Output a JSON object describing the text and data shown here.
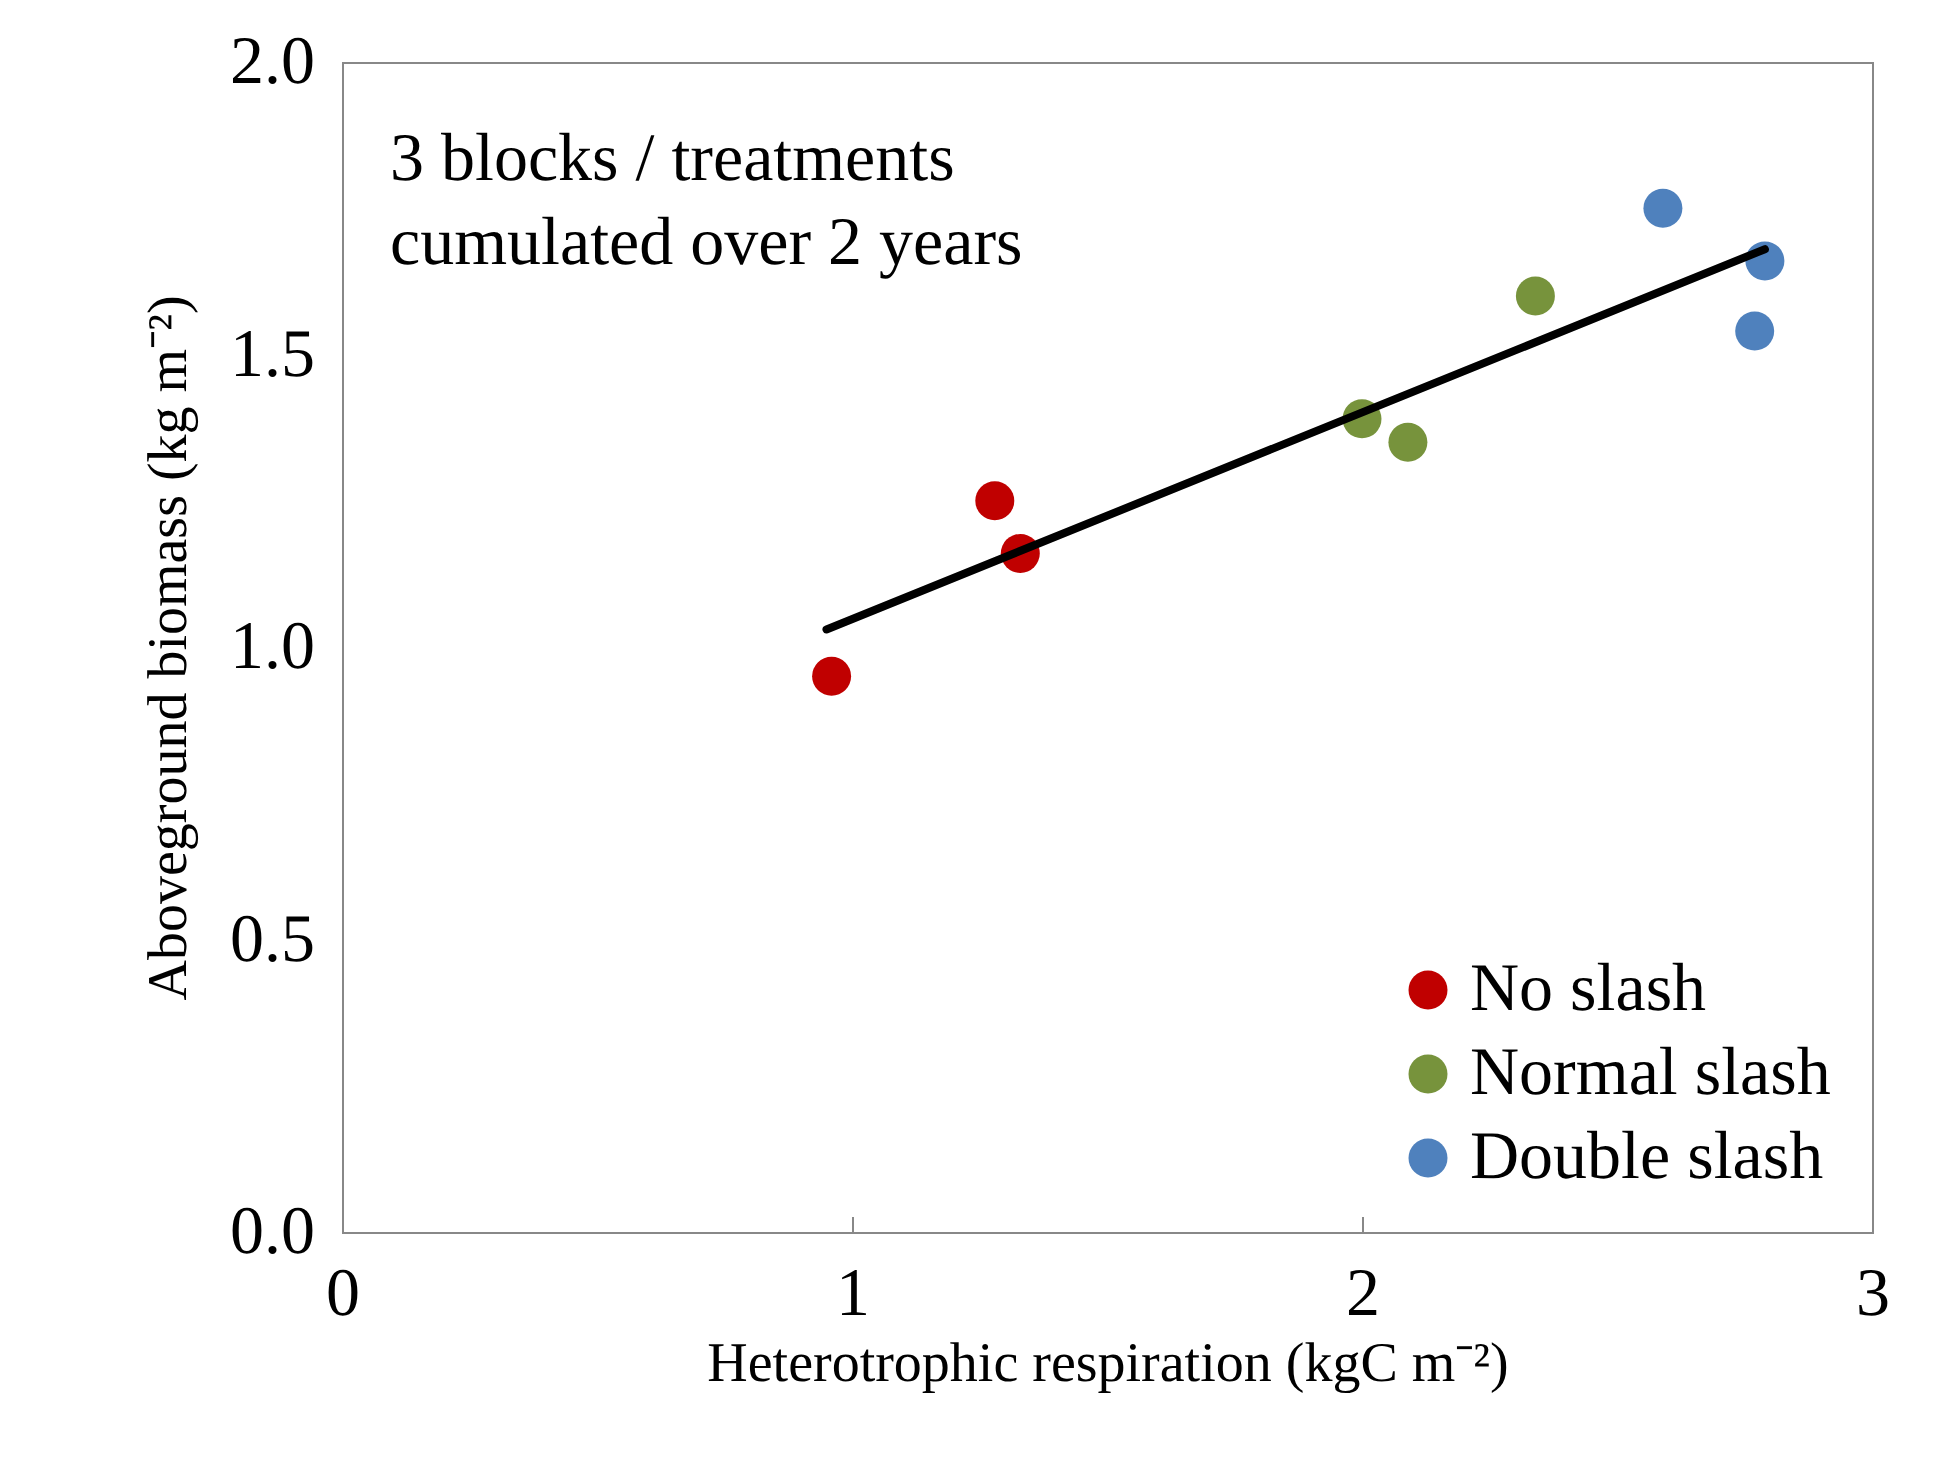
{
  "chart_data": {
    "type": "scatter",
    "xlabel": "Heterotrophic respiration (kgC m⁻²)",
    "ylabel": "Aboveground biomass (kg m⁻²)",
    "annotations": [
      "3 blocks / treatments\ncumulated over 2 years"
    ],
    "series": [
      {
        "name": "No slash",
        "color": "#c00000",
        "x": [
          0.96,
          1.28,
          1.33
        ],
        "values": [
          0.95,
          1.25,
          1.16
        ]
      },
      {
        "name": "Normal slash",
        "color": "#77933c",
        "x": [
          2.0,
          2.09,
          2.34
        ],
        "values": [
          1.39,
          1.35,
          1.6
        ]
      },
      {
        "name": "Double slash",
        "color": "#4f81bd",
        "x": [
          2.59,
          2.79,
          2.77
        ],
        "values": [
          1.75,
          1.66,
          1.54
        ]
      },
      {
        "type": "line",
        "color": "#000000",
        "marker": "none",
        "x": [
          0.95,
          2.79
        ],
        "values": [
          1.03,
          1.68
        ]
      }
    ],
    "xlim": [
      0,
      3
    ],
    "xticks": [
      0,
      1,
      2,
      3
    ],
    "ylim": [
      0,
      2
    ],
    "yticks": [
      {
        "value": 0,
        "label": "0.0"
      },
      0.5,
      {
        "value": 1,
        "label": "1.0"
      },
      1.5,
      {
        "value": 2,
        "label": "2.0"
      }
    ],
    "marker": "circle",
    "legend": "bottom right",
    "grid": false
  }
}
